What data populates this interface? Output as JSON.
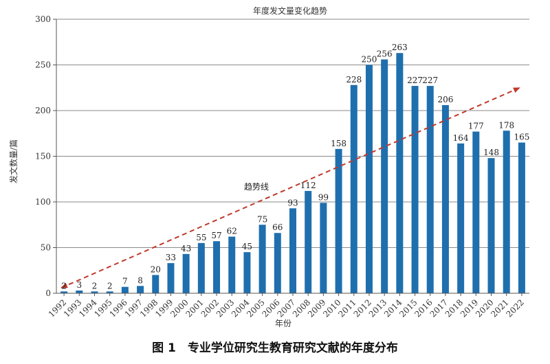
{
  "chart_data": {
    "type": "bar",
    "title": "年度发文量变化趋势",
    "xlabel": "年份",
    "ylabel": "发文数量/篇",
    "ylim": [
      0,
      300
    ],
    "yticks": [
      0,
      50,
      100,
      150,
      200,
      250,
      300
    ],
    "grid": true,
    "categories": [
      "1992",
      "1993",
      "1994",
      "1995",
      "1996",
      "1997",
      "1998",
      "1999",
      "2000",
      "2001",
      "2002",
      "2003",
      "2004",
      "2005",
      "2006",
      "2007",
      "2008",
      "2009",
      "2010",
      "2011",
      "2012",
      "2013",
      "2014",
      "2015",
      "2016",
      "2017",
      "2018",
      "2019",
      "2020",
      "2021",
      "2022"
    ],
    "values": [
      2,
      3,
      2,
      2,
      7,
      8,
      20,
      33,
      43,
      55,
      57,
      62,
      45,
      75,
      66,
      93,
      112,
      99,
      158,
      228,
      250,
      256,
      263,
      227,
      227,
      206,
      164,
      177,
      148,
      178,
      165
    ],
    "bar_color": "#1f6fae",
    "trendline": {
      "label": "趋势线",
      "start": [
        1992,
        6
      ],
      "end": [
        2022,
        225
      ],
      "color": "#c0392b",
      "style": "dashed"
    }
  },
  "caption": "图 1　专业学位研究生教育研究文献的年度分布"
}
